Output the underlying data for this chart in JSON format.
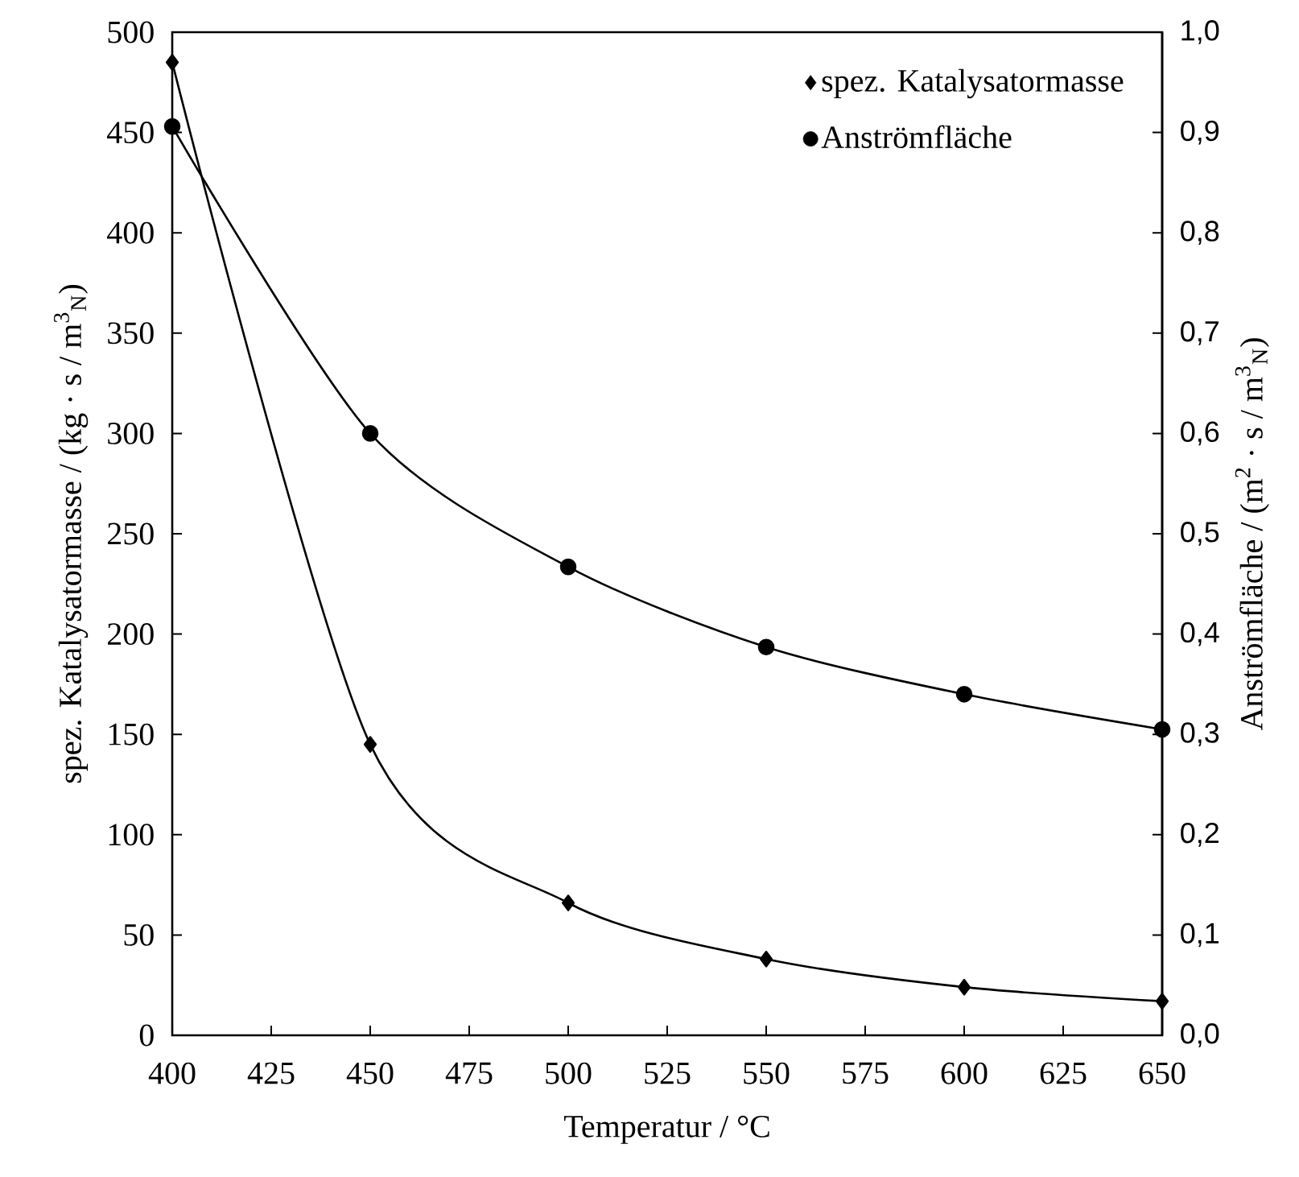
{
  "chart_data": {
    "type": "line",
    "xlabel": "Temperatur / °C",
    "ylabel": "spez. Katalysatormasse / (kg · s / m$^{3}$$_{N}$)",
    "y2label": "Anströmfläche / (m$^{2}$ · s / m$^{3}$$_{N}$)",
    "x": [
      400,
      450,
      500,
      550,
      600,
      650
    ],
    "series": [
      {
        "name": "spez. Katalysatormasse",
        "color": "#000000",
        "marker": "diamond",
        "values": [
          485,
          145,
          66,
          38,
          24,
          17
        ]
      },
      {
        "name": "Anströmfläche",
        "color": "#000000",
        "marker": "circle",
        "axis": "y2",
        "values": [
          0.906,
          0.6,
          0.467,
          0.387,
          0.34,
          0.305
        ]
      }
    ],
    "xlim": [
      400,
      650
    ],
    "xticks": [
      400,
      425,
      450,
      475,
      500,
      525,
      550,
      575,
      600,
      625,
      650
    ],
    "ylim": [
      0,
      500
    ],
    "yticks": [
      0,
      50,
      100,
      150,
      200,
      250,
      300,
      350,
      400,
      450,
      500
    ],
    "y2lim": [
      0,
      1
    ],
    "y2ticks": [
      {
        "value": 0,
        "label": "0,0"
      },
      {
        "value": 0.1,
        "label": "0,1"
      },
      {
        "value": 0.2,
        "label": "0,2"
      },
      {
        "value": 0.3,
        "label": "0,3"
      },
      {
        "value": 0.4,
        "label": "0,4"
      },
      {
        "value": 0.5,
        "label": "0,5"
      },
      {
        "value": 0.6,
        "label": "0,6"
      },
      {
        "value": 0.7,
        "label": "0,7"
      },
      {
        "value": 0.8,
        "label": "0,8"
      },
      {
        "value": 0.9,
        "label": "0,9"
      },
      {
        "value": 1,
        "label": "1,0"
      }
    ],
    "legend": "top right",
    "grid": false
  }
}
